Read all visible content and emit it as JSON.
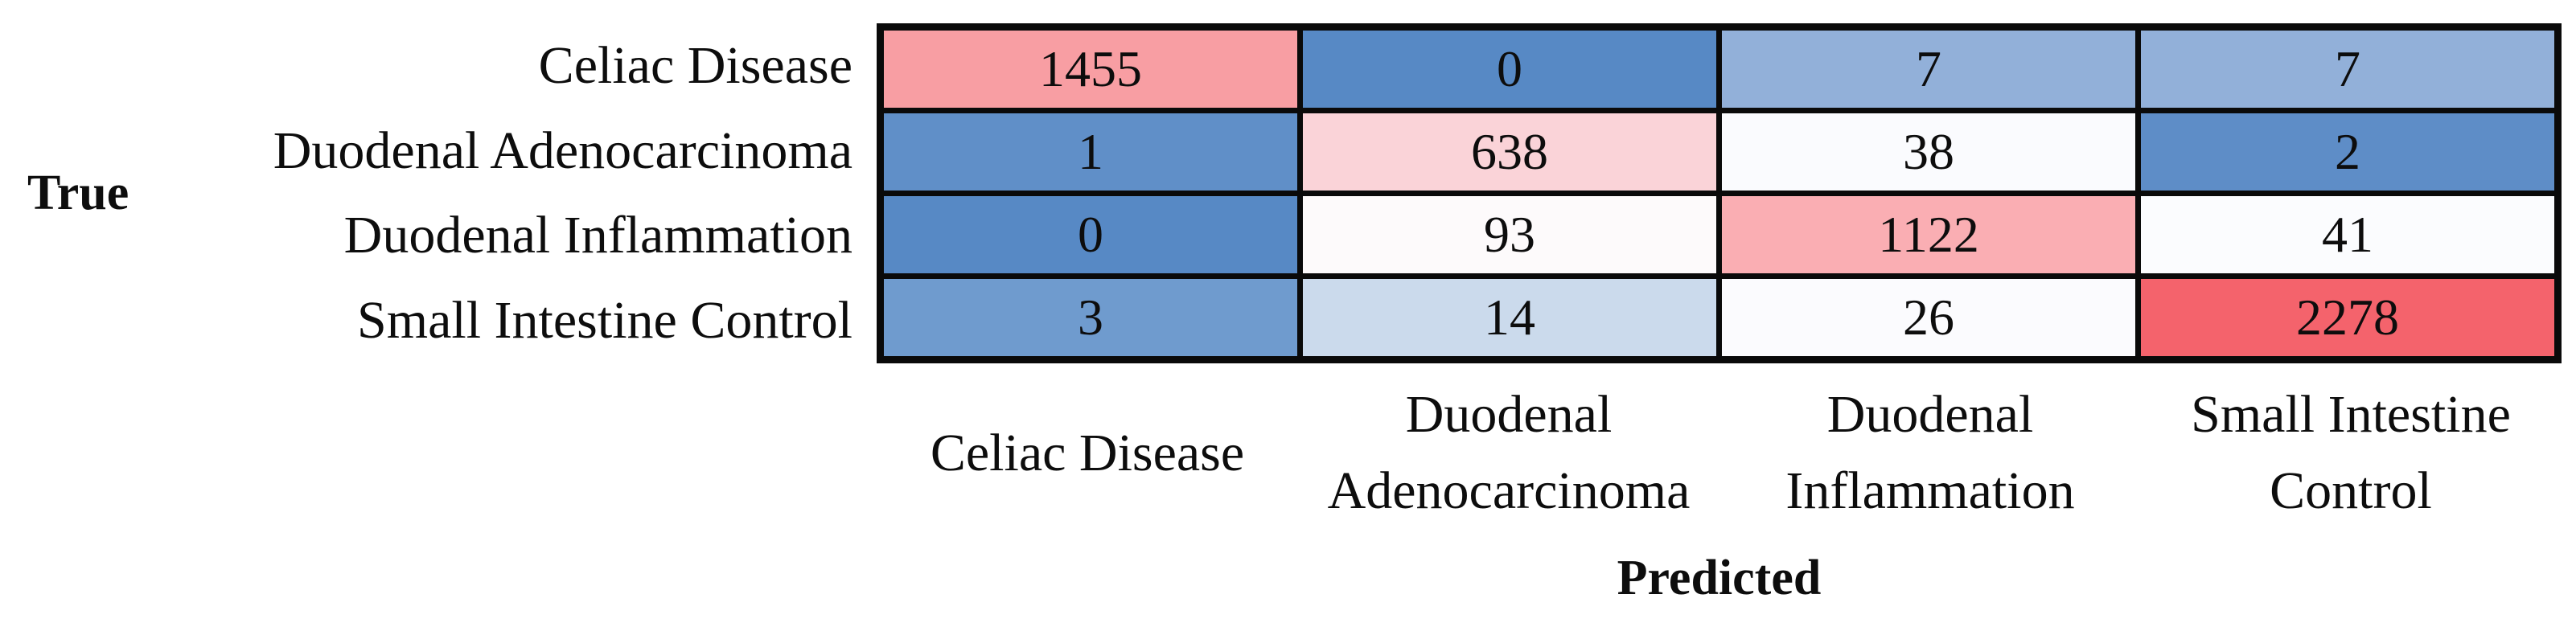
{
  "chart_data": {
    "type": "heatmap",
    "subtype": "confusion-matrix",
    "title": "",
    "xlabel": "Predicted",
    "ylabel": "True",
    "row_labels": [
      "Celiac Disease",
      "Duodenal Adenocarcinoma",
      "Duodenal Inflammation",
      "Small Intestine Control"
    ],
    "col_labels": [
      "Celiac Disease",
      "Duodenal Adenocarcinoma",
      "Duodenal Inflammation",
      "Small Intestine Control"
    ],
    "col_label_lines": [
      [
        "Celiac Disease"
      ],
      [
        "Duodenal",
        "Adenocarcinoma"
      ],
      [
        "Duodenal",
        "Inflammation"
      ],
      [
        "Small Intestine",
        "Control"
      ]
    ],
    "matrix": [
      [
        1455,
        0,
        7,
        7
      ],
      [
        1,
        638,
        38,
        2
      ],
      [
        0,
        93,
        1122,
        41
      ],
      [
        3,
        14,
        26,
        2278
      ]
    ],
    "cell_colors": [
      [
        "#F89EA3",
        "#5789C5",
        "#92B0D9",
        "#92B0D9"
      ],
      [
        "#608FC8",
        "#FAD3D8",
        "#FAFBFE",
        "#5E8DC7"
      ],
      [
        "#5789C5",
        "#FDFAFB",
        "#FAAEB3",
        "#FBFCFE"
      ],
      [
        "#6F9BCE",
        "#CBDAEC",
        "#FBFBFE",
        "#F4636C"
      ]
    ],
    "palette": {
      "diagonal_strong_red": "#F4636C",
      "diagonal_salmon": "#F89EA3",
      "off_diagonal_blue": "#5789C5",
      "near_zero_white": "#FBFBFE",
      "gridline_black": "#0a0a0a",
      "text_black": "#0d0d0d"
    },
    "legend_position": "none",
    "grid": "thick black cell borders"
  }
}
